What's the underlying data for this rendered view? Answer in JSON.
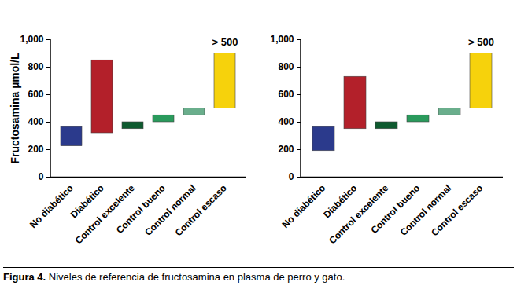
{
  "caption": "Figura 4. Niveles de referencia de fructosamina en plasma de perro y gato.",
  "chart_data": [
    {
      "type": "floating_bar",
      "y_label": "Fructosamina µmol/L",
      "categories": [
        "No diabético",
        "Diabético",
        "Control excelente",
        "Control bueno",
        "Control normal",
        "Control escaso"
      ],
      "values": [
        [
          225,
          365
        ],
        [
          320,
          850
        ],
        [
          350,
          400
        ],
        [
          400,
          450
        ],
        [
          450,
          500
        ],
        [
          500,
          900
        ]
      ],
      "colors": [
        "#2b3a8c",
        "#b3202a",
        "#0e5a2f",
        "#2a9a5c",
        "#6aae8c",
        "#f6d20c"
      ],
      "ylim": [
        0,
        1000
      ],
      "yticks": [
        0,
        200,
        400,
        600,
        800,
        1000
      ],
      "grid": false,
      "annotations": [
        {
          "text": "> 500",
          "category": "Control escaso"
        }
      ]
    },
    {
      "type": "floating_bar",
      "categories": [
        "No diabético",
        "Diabético",
        "Control excelente",
        "Control bueno",
        "Control normal",
        "Control escaso"
      ],
      "values": [
        [
          190,
          365
        ],
        [
          350,
          730
        ],
        [
          350,
          400
        ],
        [
          400,
          450
        ],
        [
          450,
          500
        ],
        [
          500,
          900
        ]
      ],
      "colors": [
        "#2b3a8c",
        "#b3202a",
        "#0e5a2f",
        "#2a9a5c",
        "#6aae8c",
        "#f6d20c"
      ],
      "ylim": [
        0,
        1000
      ],
      "yticks": [
        0,
        200,
        400,
        600,
        800,
        1000
      ],
      "grid": false,
      "annotations": [
        {
          "text": "> 500",
          "category": "Control escaso"
        }
      ]
    }
  ]
}
